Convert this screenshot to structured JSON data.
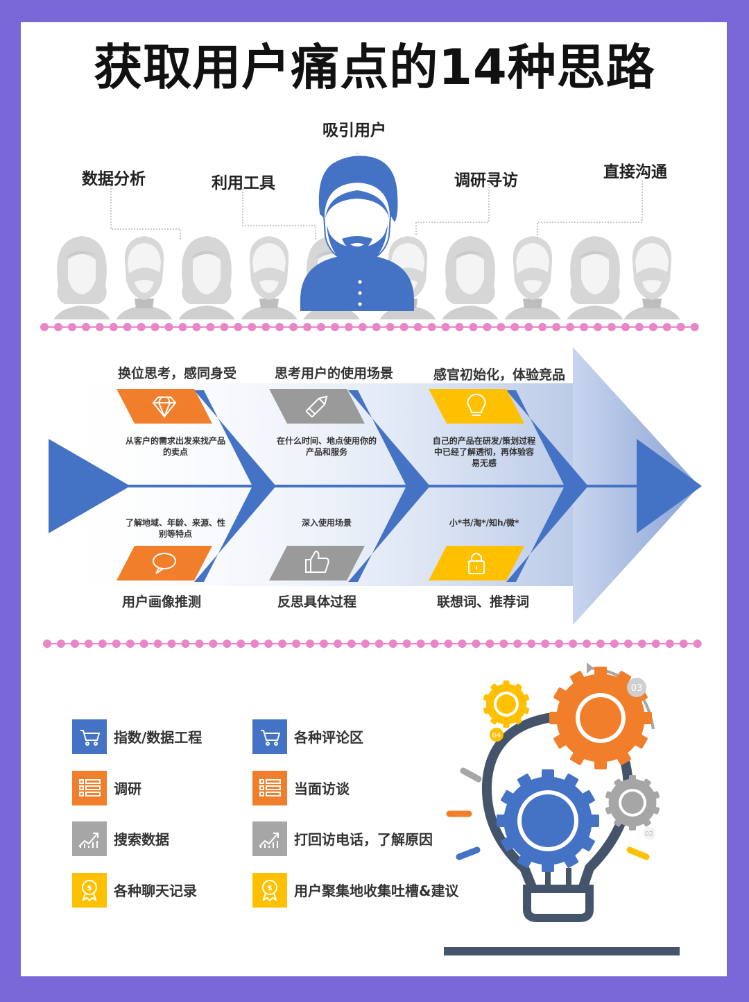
{
  "title": "获取用户痛点的14种思路",
  "top_labels": {
    "attract": "吸引用户",
    "data_analysis": "数据分析",
    "tools": "利用工具",
    "research": "调研寻访",
    "direct": "直接沟通"
  },
  "fishbone": {
    "top": [
      {
        "title": "换位思考，感同身受",
        "desc": "从客户的需求出发来找产品的卖点",
        "color": "#f07e2a",
        "icon": "diamond-icon"
      },
      {
        "title": "思考用户的使用场景",
        "desc": "在什么时间、地点使用你的产品和服务",
        "color": "#9a9a9a",
        "icon": "pencil-icon"
      },
      {
        "title": "感官初始化，体验竞品",
        "desc": "自己的产品在研发/策划过程中已经了解透彻，再体验容易无感",
        "color": "#ffc000",
        "icon": "lightbulb-icon"
      }
    ],
    "bottom": [
      {
        "title": "用户画像推测",
        "desc": "了解地域、年龄、来源、性别等特点",
        "color": "#f07e2a",
        "icon": "chat-bubble-icon"
      },
      {
        "title": "反思具体过程",
        "desc": "深入使用场景",
        "color": "#9a9a9a",
        "icon": "thumbs-up-icon"
      },
      {
        "title": "联想词、推荐词",
        "desc": "小*书/淘*/知h/微*",
        "color": "#ffc000",
        "icon": "lock-icon"
      }
    ]
  },
  "methods": [
    {
      "label": "指数/数据工程",
      "color": "#4472c4",
      "icon": "cart-icon"
    },
    {
      "label": "各种评论区",
      "color": "#4472c4",
      "icon": "cart-icon"
    },
    {
      "label": "调研",
      "color": "#f07e2a",
      "icon": "list-icon"
    },
    {
      "label": "当面访谈",
      "color": "#f07e2a",
      "icon": "list-icon"
    },
    {
      "label": "搜索数据",
      "color": "#a6a6a6",
      "icon": "growth-chart-icon"
    },
    {
      "label": "打回访电话，了解原因",
      "color": "#a6a6a6",
      "icon": "growth-chart-icon"
    },
    {
      "label": "各种聊天记录",
      "color": "#ffc000",
      "icon": "coin-badge-icon"
    },
    {
      "label": "用户聚集地收集吐槽&建议",
      "color": "#ffc000",
      "icon": "coin-badge-icon"
    }
  ],
  "bulb_gears": [
    "03",
    "04",
    "02"
  ],
  "colors": {
    "background": "#7b68d8",
    "blue": "#4472c4",
    "orange": "#f07e2a",
    "gray": "#a6a6a6",
    "yellow": "#ffc000",
    "dots": "#e986c8",
    "dark": "#44546a"
  }
}
